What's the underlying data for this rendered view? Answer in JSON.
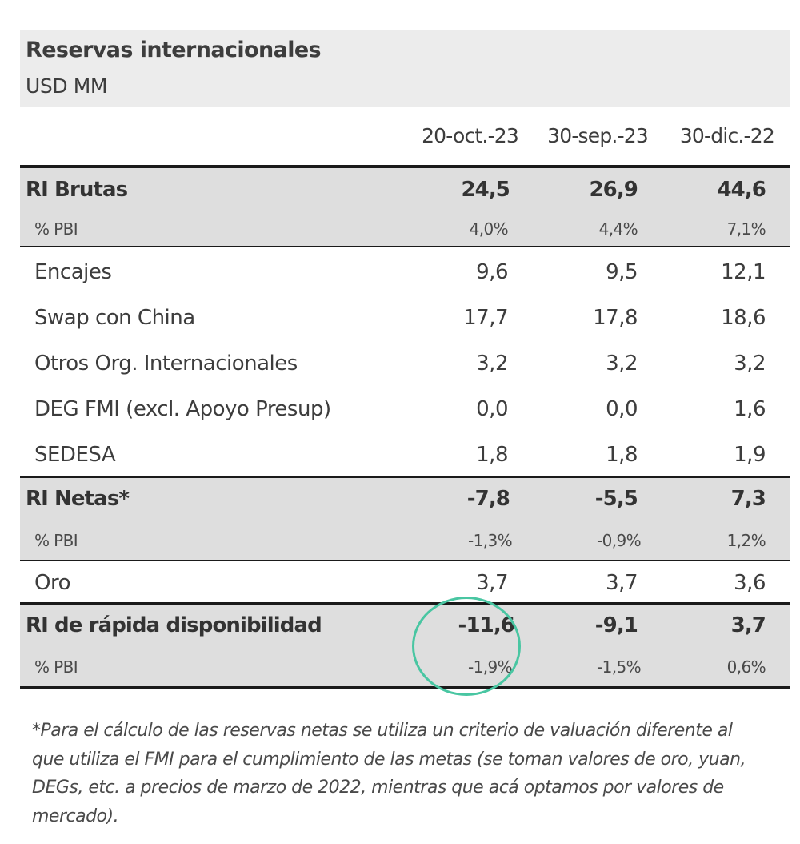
{
  "header": {
    "title": "Reservas internacionales",
    "subtitle": "USD MM"
  },
  "columns": [
    "20-oct.-23",
    "30-sep.-23",
    "30-dic.-22"
  ],
  "rows": [
    {
      "label": "RI Brutas",
      "values": [
        "24,5",
        "26,9",
        "44,6"
      ]
    },
    {
      "label": "% PBI",
      "values": [
        "4,0%",
        "4,4%",
        "7,1%"
      ]
    },
    {
      "label": "Encajes",
      "values": [
        "9,6",
        "9,5",
        "12,1"
      ]
    },
    {
      "label": "Swap con China",
      "values": [
        "17,7",
        "17,8",
        "18,6"
      ]
    },
    {
      "label": "Otros Org. Internacionales",
      "values": [
        "3,2",
        "3,2",
        "3,2"
      ]
    },
    {
      "label": "DEG FMI (excl. Apoyo Presup)",
      "values": [
        "0,0",
        "0,0",
        "1,6"
      ]
    },
    {
      "label": "SEDESA",
      "values": [
        "1,8",
        "1,8",
        "1,9"
      ]
    },
    {
      "label": "RI Netas*",
      "values": [
        "-7,8",
        "-5,5",
        "7,3"
      ]
    },
    {
      "label": "% PBI",
      "values": [
        "-1,3%",
        "-0,9%",
        "1,2%"
      ]
    },
    {
      "label": "Oro",
      "values": [
        "3,7",
        "3,7",
        "3,6"
      ]
    },
    {
      "label": "RI de rápida disponibilidad",
      "values": [
        "-11,6",
        "-9,1",
        "3,7"
      ]
    },
    {
      "label": "% PBI",
      "values": [
        "-1,9%",
        "-1,5%",
        "0,6%"
      ]
    }
  ],
  "footnote": "*Para el cálculo de las reservas netas se utiliza un criterio de valuación diferente al que utiliza el FMI para el cumplimiento de las metas (se toman valores de oro, yuan, DEGs, etc. a precios de marzo de 2022, mientras que acá optamos por valores de mercado).",
  "colors": {
    "highlight_circle": "#49c6a2",
    "band": "#dedede",
    "header_bg": "#ececec"
  }
}
